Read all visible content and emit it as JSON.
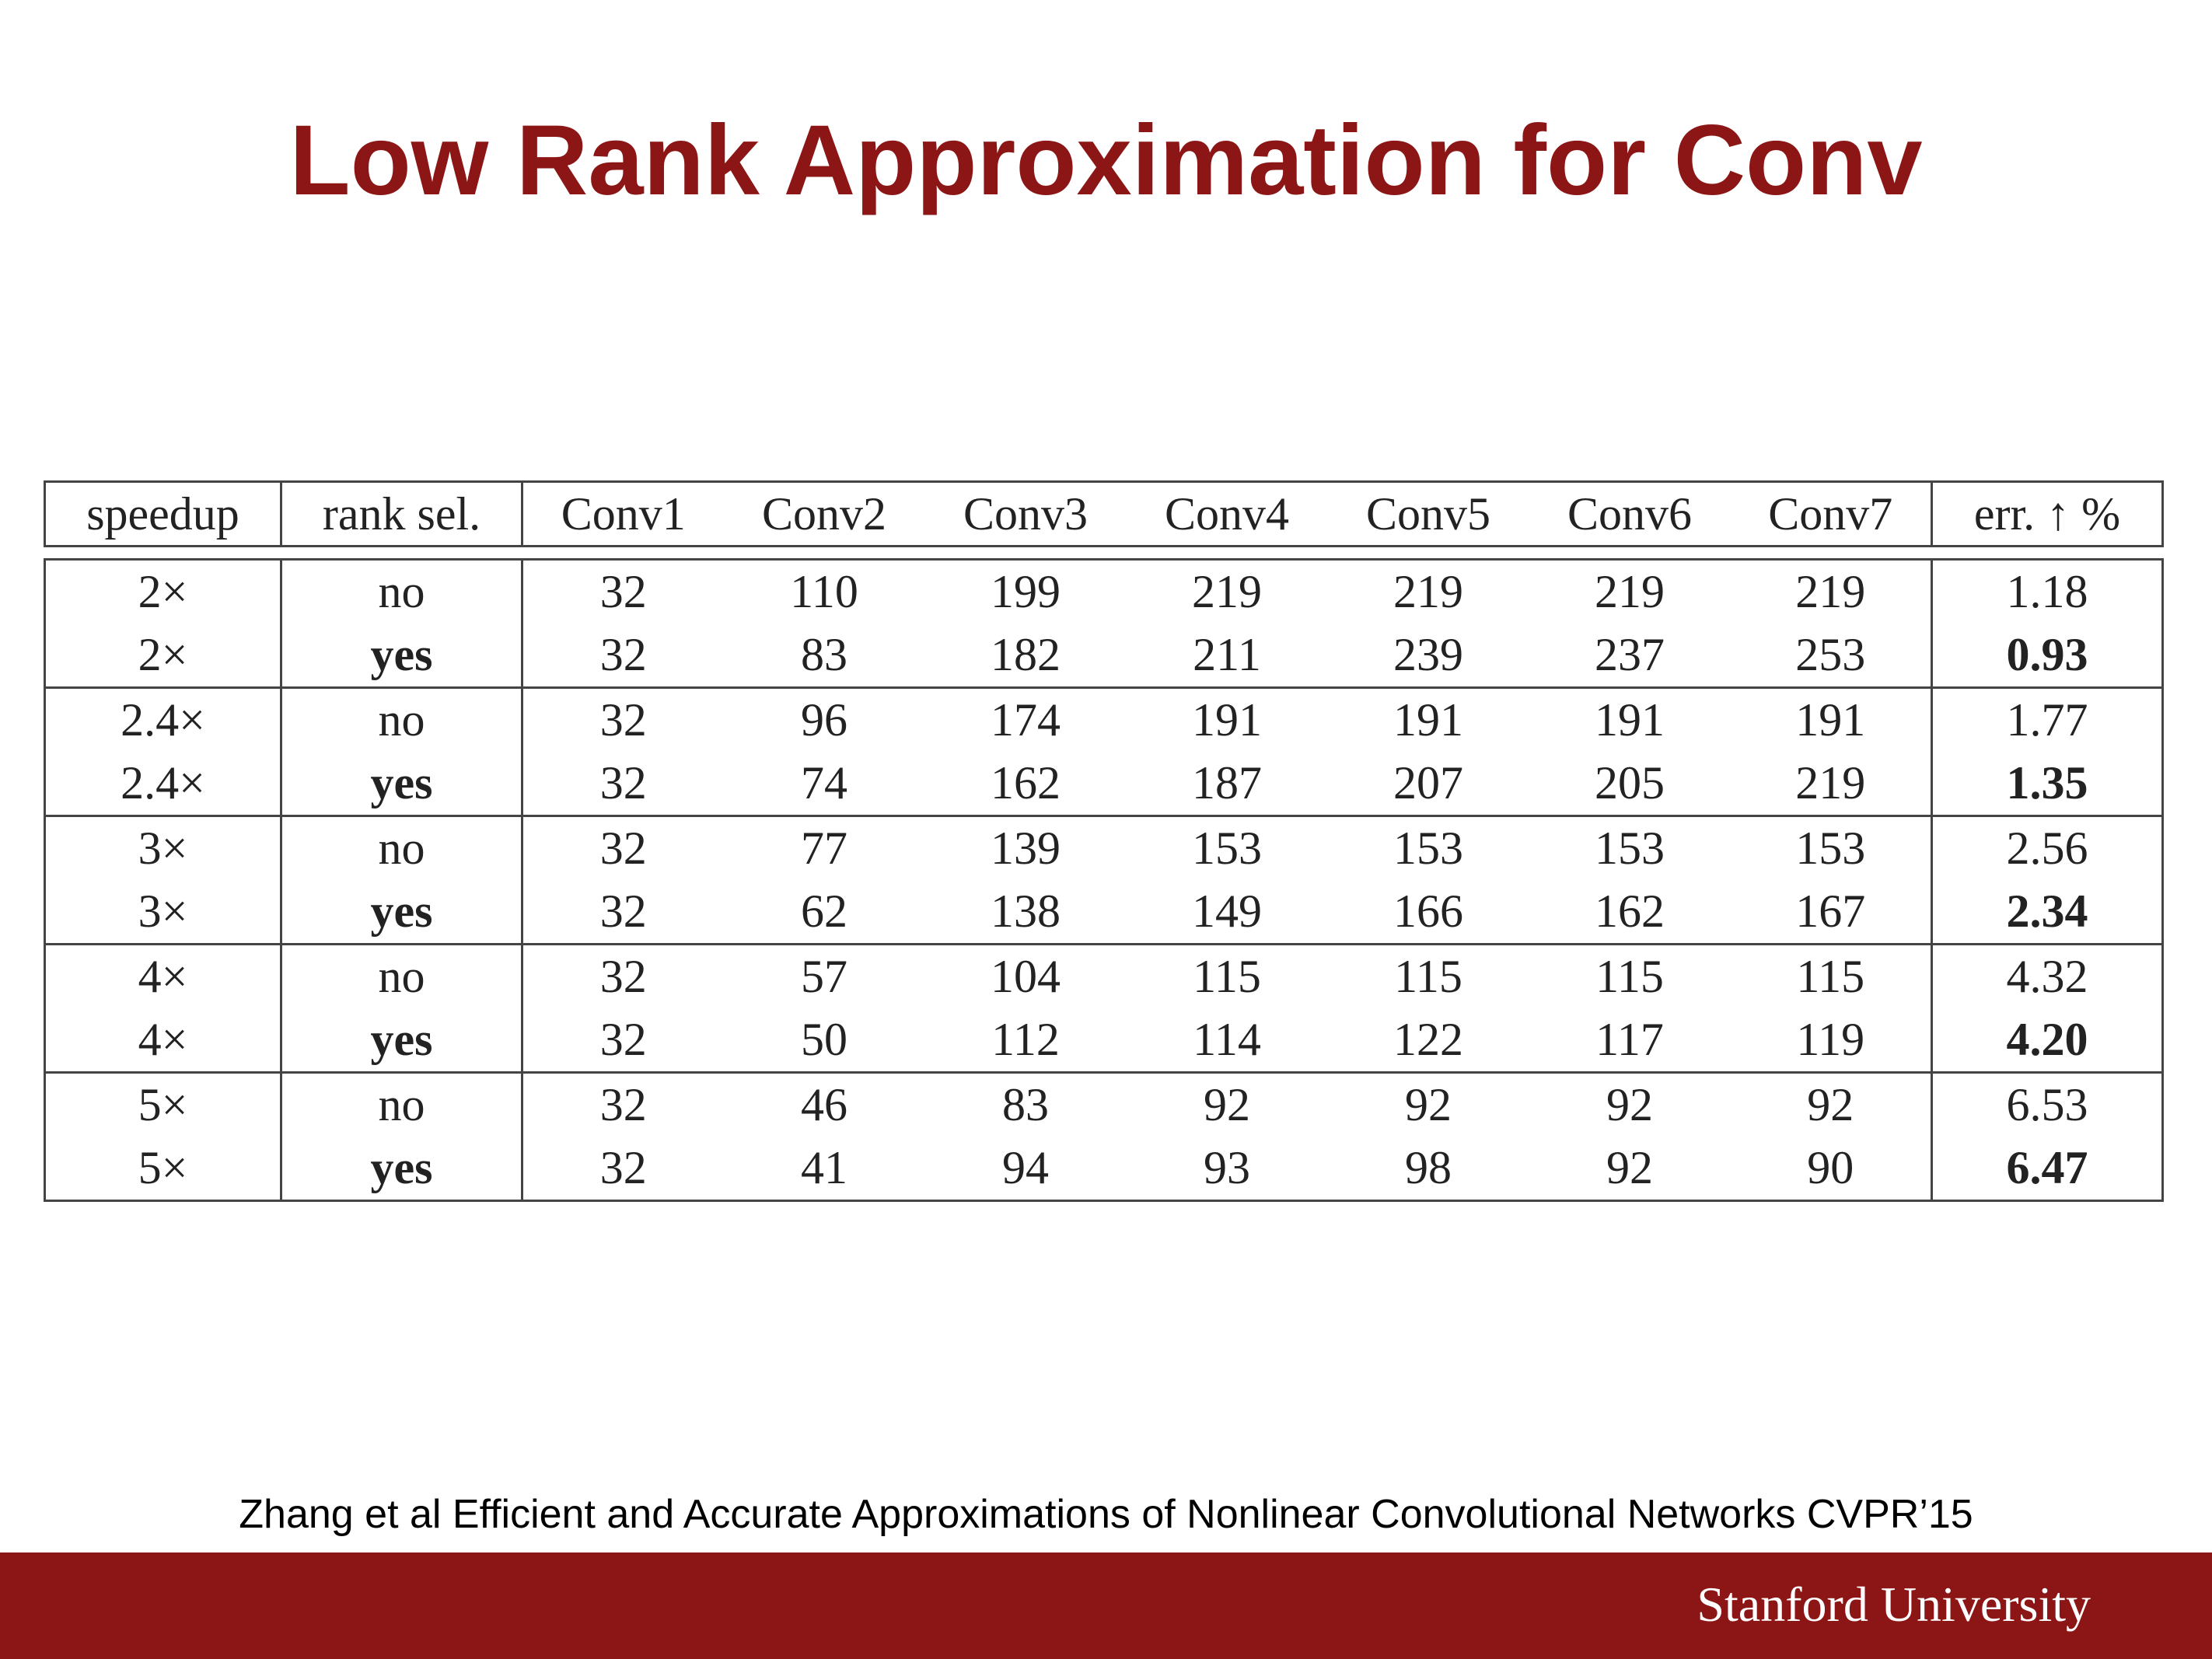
{
  "slide": {
    "title": "Low Rank Approximation for Conv",
    "citation": "Zhang et al Efficient and Accurate Approximations of Nonlinear Convolutional Networks CVPR’15",
    "footer_logo": "Stanford University"
  },
  "colors": {
    "accent": "#8c1515",
    "text": "#222222",
    "rule": "#444444"
  },
  "table": {
    "headers": [
      "speedup",
      "rank sel.",
      "Conv1",
      "Conv2",
      "Conv3",
      "Conv4",
      "Conv5",
      "Conv6",
      "Conv7",
      "err. ↑ %"
    ],
    "rows": [
      {
        "speedup": "2×",
        "rank_sel": "no",
        "convs": [
          "32",
          "110",
          "199",
          "219",
          "219",
          "219",
          "219"
        ],
        "err": "1.18"
      },
      {
        "speedup": "2×",
        "rank_sel": "yes",
        "convs": [
          "32",
          "83",
          "182",
          "211",
          "239",
          "237",
          "253"
        ],
        "err": "0.93"
      },
      {
        "speedup": "2.4×",
        "rank_sel": "no",
        "convs": [
          "32",
          "96",
          "174",
          "191",
          "191",
          "191",
          "191"
        ],
        "err": "1.77"
      },
      {
        "speedup": "2.4×",
        "rank_sel": "yes",
        "convs": [
          "32",
          "74",
          "162",
          "187",
          "207",
          "205",
          "219"
        ],
        "err": "1.35"
      },
      {
        "speedup": "3×",
        "rank_sel": "no",
        "convs": [
          "32",
          "77",
          "139",
          "153",
          "153",
          "153",
          "153"
        ],
        "err": "2.56"
      },
      {
        "speedup": "3×",
        "rank_sel": "yes",
        "convs": [
          "32",
          "62",
          "138",
          "149",
          "166",
          "162",
          "167"
        ],
        "err": "2.34"
      },
      {
        "speedup": "4×",
        "rank_sel": "no",
        "convs": [
          "32",
          "57",
          "104",
          "115",
          "115",
          "115",
          "115"
        ],
        "err": "4.32"
      },
      {
        "speedup": "4×",
        "rank_sel": "yes",
        "convs": [
          "32",
          "50",
          "112",
          "114",
          "122",
          "117",
          "119"
        ],
        "err": "4.20"
      },
      {
        "speedup": "5×",
        "rank_sel": "no",
        "convs": [
          "32",
          "46",
          "83",
          "92",
          "92",
          "92",
          "92"
        ],
        "err": "6.53"
      },
      {
        "speedup": "5×",
        "rank_sel": "yes",
        "convs": [
          "32",
          "41",
          "94",
          "93",
          "98",
          "92",
          "90"
        ],
        "err": "6.47"
      }
    ]
  }
}
